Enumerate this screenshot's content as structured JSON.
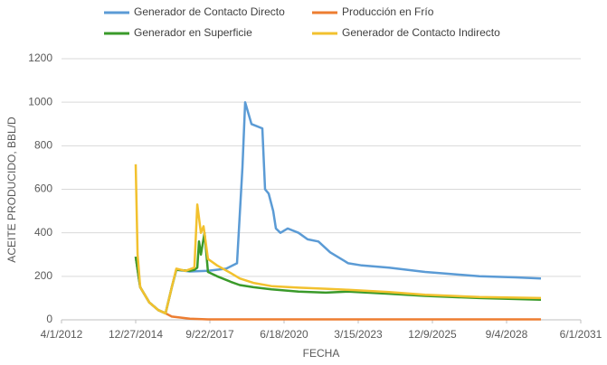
{
  "chart_data": {
    "type": "line",
    "x_label": "FECHA",
    "y_label": "ACEITE PRODUCIDO, BBL/D",
    "xlim": [
      "4/1/2012",
      "6/1/2031"
    ],
    "xticks": [
      "4/1/2012",
      "12/27/2014",
      "9/22/2017",
      "6/18/2020",
      "3/15/2023",
      "12/9/2025",
      "9/4/2028",
      "6/1/2031"
    ],
    "ylim": [
      0,
      1200
    ],
    "yticks": [
      0,
      200,
      400,
      600,
      800,
      1000,
      1200
    ],
    "grid": true,
    "series": [
      {
        "name": "Generador de Contacto Directo",
        "color": "#5b9bd5",
        "x": [
          "12/27/2014",
          "2/26/2015",
          "6/28/2015",
          "10/27/2015",
          "2/2/2016",
          "4/27/2016",
          "6/27/2016",
          "12/27/2016",
          "8/28/2017",
          "4/29/2018",
          "9/23/2018",
          "12/5/2018",
          "1/11/2019",
          "4/6/2019",
          "8/30/2019",
          "10/6/2019",
          "11/24/2019",
          "1/24/2020",
          "2/29/2020",
          "4/30/2020",
          "8/6/2020",
          "12/30/2020",
          "5/1/2021",
          "9/25/2021",
          "3/2/2022",
          "11/1/2022",
          "5/3/2023",
          "5/3/2024",
          "9/1/2025",
          "9/2/2026",
          "9/3/2027",
          "1/3/2029",
          "12/11/2029"
        ],
        "values": [
          290,
          150,
          80,
          45,
          30,
          150,
          230,
          222,
          225,
          235,
          260,
          700,
          1000,
          900,
          880,
          600,
          580,
          500,
          420,
          400,
          420,
          400,
          370,
          360,
          310,
          260,
          250,
          240,
          220,
          210,
          200,
          195,
          190
        ]
      },
      {
        "name": "Producción en Frío",
        "color": "#ed7d31",
        "x": [
          "12/27/2014",
          "2/26/2015",
          "6/28/2015",
          "10/27/2015",
          "2/2/2016",
          "4/27/2016",
          "12/27/2016",
          "8/28/2017",
          "12/11/2029"
        ],
        "values": [
          290,
          150,
          80,
          45,
          30,
          15,
          5,
          2,
          2
        ]
      },
      {
        "name": "Generador en Superficie",
        "color": "#3a9a2a",
        "x": [
          "12/27/2014",
          "2/26/2015",
          "6/28/2015",
          "10/27/2015",
          "2/2/2016",
          "4/27/2016",
          "6/27/2016",
          "12/27/2016",
          "2/26/2017",
          "4/5/2017",
          "4/29/2017",
          "5/24/2017",
          "7/12/2017",
          "8/28/2017",
          "12/29/2017",
          "6/30/2018",
          "10/30/2018",
          "5/1/2019",
          "12/31/2019",
          "12/30/2020",
          "1/1/2022",
          "11/1/2022",
          "5/3/2024",
          "9/1/2025",
          "9/3/2027",
          "12/11/2029"
        ],
        "values": [
          290,
          150,
          80,
          45,
          30,
          150,
          230,
          225,
          230,
          240,
          360,
          300,
          400,
          220,
          200,
          175,
          160,
          150,
          140,
          130,
          125,
          130,
          120,
          110,
          100,
          92
        ]
      },
      {
        "name": "Generador de Contacto Indirecto",
        "color": "#f2c12e",
        "x": [
          "12/27/2014",
          "1/21/2015",
          "2/26/2015",
          "6/28/2015",
          "10/27/2015",
          "2/2/2016",
          "4/27/2016",
          "6/27/2016",
          "10/28/2016",
          "2/26/2017",
          "4/5/2017",
          "5/24/2017",
          "6/29/2017",
          "8/28/2017",
          "12/29/2017",
          "6/30/2018",
          "10/30/2018",
          "5/1/2019",
          "12/31/2019",
          "12/30/2020",
          "1/1/2022",
          "11/1/2022",
          "5/3/2024",
          "9/1/2025",
          "9/3/2027",
          "12/11/2029"
        ],
        "values": [
          715,
          300,
          150,
          80,
          45,
          30,
          150,
          235,
          225,
          240,
          530,
          400,
          430,
          280,
          250,
          215,
          190,
          170,
          155,
          148,
          143,
          138,
          128,
          115,
          105,
          100
        ]
      }
    ],
    "legend": "top"
  }
}
